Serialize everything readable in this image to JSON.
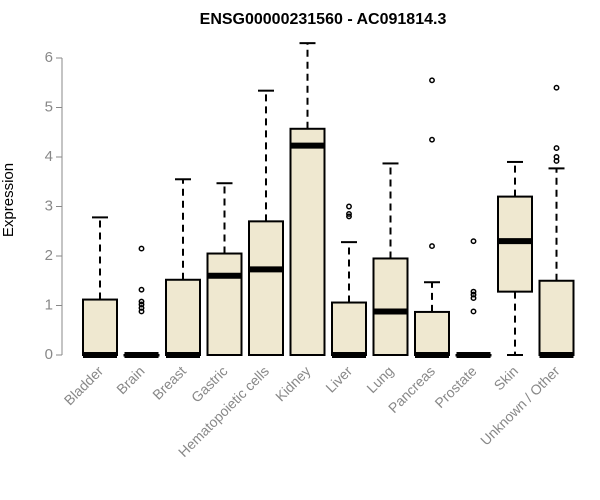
{
  "chart_data": {
    "type": "box",
    "title": "ENSG00000231560 - AC091814.3",
    "xlabel": "",
    "ylabel": "Expression",
    "ylim": [
      0,
      6.3
    ],
    "yticks": [
      0,
      1,
      2,
      3,
      4,
      5,
      6
    ],
    "grid": false,
    "legend": "none",
    "colors": {
      "box_fill": "#efe8d0",
      "stroke": "#000000",
      "axis_text": "#888888"
    },
    "categories": [
      "Bladder",
      "Brain",
      "Breast",
      "Gastric",
      "Hematopoietic cells",
      "Kidney",
      "Liver",
      "Lung",
      "Pancreas",
      "Prostate",
      "Skin",
      "Unknown / Other"
    ],
    "boxes": [
      {
        "whisker_low": 0,
        "q1": 0,
        "median": 0,
        "q3": 1.12,
        "whisker_high": 2.78,
        "outliers": []
      },
      {
        "whisker_low": 0,
        "q1": 0,
        "median": 0,
        "q3": 0,
        "whisker_high": 0,
        "outliers": [
          0.88,
          0.95,
          1.02,
          1.08,
          1.32,
          2.15
        ]
      },
      {
        "whisker_low": 0,
        "q1": 0,
        "median": 0,
        "q3": 1.52,
        "whisker_high": 3.55,
        "outliers": []
      },
      {
        "whisker_low": 0,
        "q1": 0,
        "median": 1.6,
        "q3": 2.05,
        "whisker_high": 3.47,
        "outliers": []
      },
      {
        "whisker_low": 0,
        "q1": 0,
        "median": 1.73,
        "q3": 2.7,
        "whisker_high": 5.34,
        "outliers": []
      },
      {
        "whisker_low": 0,
        "q1": 0,
        "median": 4.23,
        "q3": 4.57,
        "whisker_high": 6.3,
        "outliers": []
      },
      {
        "whisker_low": 0,
        "q1": 0,
        "median": 0,
        "q3": 1.06,
        "whisker_high": 2.28,
        "outliers": [
          2.8,
          2.85,
          3.0
        ]
      },
      {
        "whisker_low": 0,
        "q1": 0,
        "median": 0.88,
        "q3": 1.95,
        "whisker_high": 3.87,
        "outliers": []
      },
      {
        "whisker_low": 0,
        "q1": 0,
        "median": 0,
        "q3": 0.87,
        "whisker_high": 1.47,
        "outliers": [
          2.2,
          4.35,
          5.55
        ]
      },
      {
        "whisker_low": 0,
        "q1": 0,
        "median": 0,
        "q3": 0,
        "whisker_high": 0,
        "outliers": [
          0.88,
          1.15,
          1.22,
          1.28,
          2.3
        ]
      },
      {
        "whisker_low": 0,
        "q1": 1.28,
        "median": 2.3,
        "q3": 3.2,
        "whisker_high": 3.9,
        "outliers": []
      },
      {
        "whisker_low": 0,
        "q1": 0,
        "median": 0,
        "q3": 1.5,
        "whisker_high": 3.77,
        "outliers": [
          3.92,
          4.0,
          4.18,
          5.4
        ]
      }
    ]
  }
}
